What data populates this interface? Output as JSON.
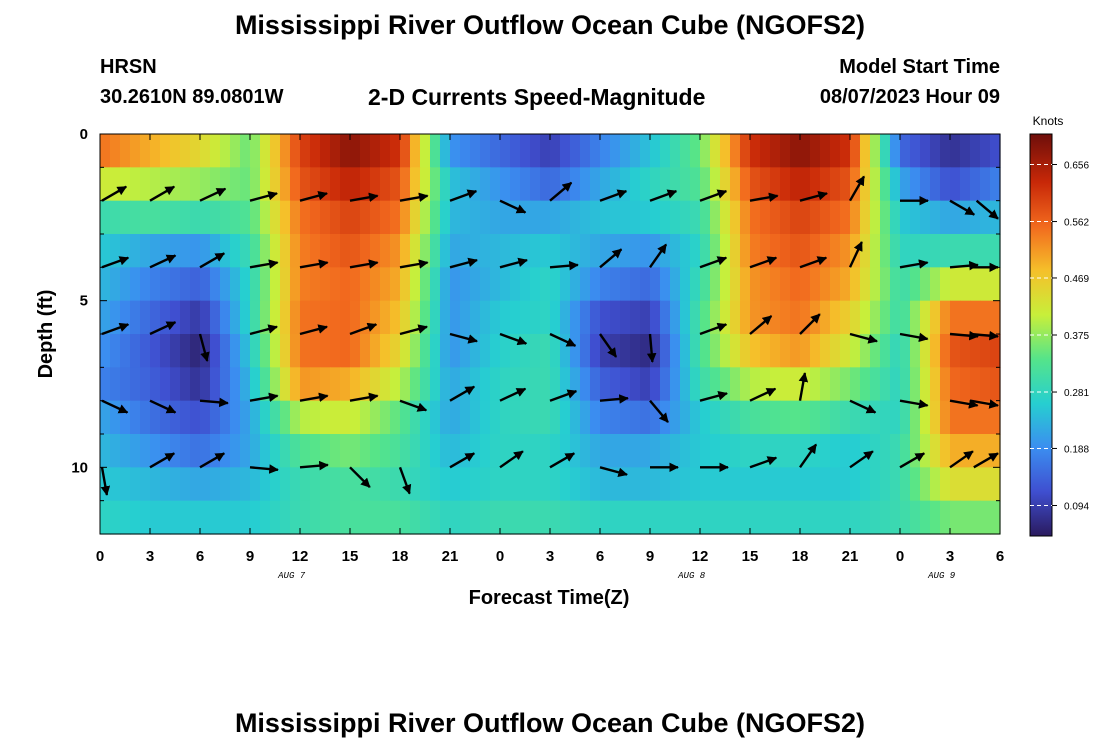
{
  "header": {
    "title": "Mississippi River Outflow Ocean Cube (NGOFS2)",
    "station": "HRSN",
    "coords": "30.2610N  89.0801W",
    "subtitle": "2-D Currents Speed-Magnitude",
    "start_label": "Model Start Time",
    "start_value": "08/07/2023 Hour 09"
  },
  "footer": {
    "title": "Mississippi River Outflow Ocean Cube (NGOFS2)"
  },
  "chart_data": {
    "type": "heatmap",
    "title": "2-D Currents Speed-Magnitude",
    "xlabel": "Forecast Time(Z)",
    "ylabel": "Depth (ft)",
    "x_range_hours": [
      0,
      54
    ],
    "ylim": [
      0,
      12
    ],
    "y_inverted": true,
    "xtick_labels": [
      "0",
      "3",
      "6",
      "9",
      "12",
      "15",
      "18",
      "21",
      "0",
      "3",
      "6",
      "9",
      "12",
      "15",
      "18",
      "21",
      "0",
      "3",
      "6"
    ],
    "ytick_labels": [
      "0",
      "5",
      "10"
    ],
    "date_labels": [
      {
        "hour": 11.5,
        "text": "AUG 7"
      },
      {
        "hour": 35.5,
        "text": "AUG 8"
      },
      {
        "hour": 50.5,
        "text": "AUG 9"
      }
    ],
    "colorbar": {
      "unit": "Knots",
      "min": 0.047,
      "max": 0.703,
      "ticks": [
        "0.656",
        "0.562",
        "0.469",
        "0.375",
        "0.281",
        "0.188",
        "0.094"
      ],
      "colors": [
        "#2a1a5e",
        "#3f4fd0",
        "#3b8ef0",
        "#26cfd0",
        "#55e48a",
        "#c8ef3a",
        "#f5c02a",
        "#f26a1e",
        "#c82808",
        "#6e0e0a"
      ]
    },
    "depth_levels_ft": [
      0.5,
      1.5,
      2.5,
      3.5,
      4.5,
      5.5,
      6.5,
      7.5,
      8.5,
      9.5,
      10.5,
      11.5
    ],
    "speed_rows": [
      [
        0.55,
        0.5,
        0.45,
        0.35,
        0.6,
        0.68,
        0.62,
        0.2,
        0.15,
        0.1,
        0.18,
        0.25,
        0.35,
        0.62,
        0.68,
        0.62,
        0.15,
        0.08,
        0.12
      ],
      [
        0.42,
        0.4,
        0.38,
        0.35,
        0.58,
        0.64,
        0.58,
        0.25,
        0.2,
        0.15,
        0.22,
        0.28,
        0.33,
        0.58,
        0.64,
        0.58,
        0.22,
        0.12,
        0.18
      ],
      [
        0.3,
        0.32,
        0.3,
        0.33,
        0.55,
        0.6,
        0.55,
        0.24,
        0.22,
        0.22,
        0.25,
        0.26,
        0.3,
        0.55,
        0.6,
        0.55,
        0.26,
        0.22,
        0.24
      ],
      [
        0.26,
        0.22,
        0.2,
        0.3,
        0.54,
        0.58,
        0.52,
        0.22,
        0.24,
        0.26,
        0.22,
        0.2,
        0.28,
        0.54,
        0.58,
        0.52,
        0.28,
        0.3,
        0.3
      ],
      [
        0.24,
        0.18,
        0.14,
        0.28,
        0.54,
        0.56,
        0.5,
        0.2,
        0.24,
        0.28,
        0.18,
        0.15,
        0.3,
        0.52,
        0.56,
        0.5,
        0.3,
        0.42,
        0.42
      ],
      [
        0.22,
        0.15,
        0.09,
        0.28,
        0.55,
        0.56,
        0.48,
        0.2,
        0.26,
        0.28,
        0.12,
        0.1,
        0.32,
        0.52,
        0.55,
        0.46,
        0.3,
        0.55,
        0.55
      ],
      [
        0.2,
        0.13,
        0.06,
        0.26,
        0.55,
        0.56,
        0.45,
        0.2,
        0.27,
        0.3,
        0.1,
        0.07,
        0.32,
        0.48,
        0.52,
        0.42,
        0.28,
        0.58,
        0.6
      ],
      [
        0.18,
        0.14,
        0.08,
        0.24,
        0.52,
        0.5,
        0.4,
        0.22,
        0.28,
        0.3,
        0.14,
        0.1,
        0.3,
        0.4,
        0.42,
        0.36,
        0.28,
        0.56,
        0.58
      ],
      [
        0.22,
        0.16,
        0.12,
        0.22,
        0.4,
        0.42,
        0.34,
        0.22,
        0.28,
        0.3,
        0.18,
        0.16,
        0.26,
        0.32,
        0.34,
        0.3,
        0.28,
        0.55,
        0.55
      ],
      [
        0.24,
        0.2,
        0.16,
        0.22,
        0.33,
        0.36,
        0.32,
        0.24,
        0.28,
        0.28,
        0.22,
        0.22,
        0.26,
        0.28,
        0.28,
        0.26,
        0.3,
        0.5,
        0.5
      ],
      [
        0.26,
        0.24,
        0.22,
        0.24,
        0.3,
        0.32,
        0.3,
        0.26,
        0.28,
        0.28,
        0.24,
        0.24,
        0.26,
        0.26,
        0.26,
        0.26,
        0.3,
        0.44,
        0.44
      ],
      [
        0.28,
        0.26,
        0.26,
        0.26,
        0.3,
        0.32,
        0.32,
        0.28,
        0.3,
        0.3,
        0.28,
        0.28,
        0.28,
        0.28,
        0.28,
        0.28,
        0.3,
        0.36,
        0.36
      ]
    ],
    "vector_depths_ft": [
      2,
      4,
      6,
      8,
      10
    ],
    "vector_hours": [
      0,
      3,
      6,
      9,
      12,
      15,
      18,
      21,
      24,
      27,
      30,
      33,
      36,
      39,
      42,
      45,
      48,
      51,
      54
    ],
    "vector_angles_deg": [
      [
        30,
        30,
        25,
        15,
        15,
        10,
        10,
        20,
        -25,
        40,
        20,
        20,
        20,
        10,
        15,
        60,
        0,
        -30,
        -40
      ],
      [
        20,
        25,
        30,
        10,
        10,
        10,
        10,
        15,
        15,
        5,
        40,
        55,
        20,
        20,
        20,
        65,
        10,
        5,
        0
      ],
      [
        20,
        25,
        -75,
        15,
        15,
        20,
        15,
        -15,
        -20,
        -25,
        -55,
        -85,
        20,
        40,
        45,
        -15,
        -10,
        -5,
        -5
      ],
      [
        -25,
        -25,
        -5,
        10,
        10,
        10,
        -20,
        30,
        25,
        20,
        5,
        -50,
        15,
        25,
        80,
        -25,
        -10,
        -10,
        -10
      ],
      [
        -80,
        30,
        30,
        -5,
        5,
        -45,
        -70,
        30,
        35,
        30,
        -15,
        0,
        0,
        20,
        55,
        35,
        30,
        35,
        30
      ]
    ]
  }
}
